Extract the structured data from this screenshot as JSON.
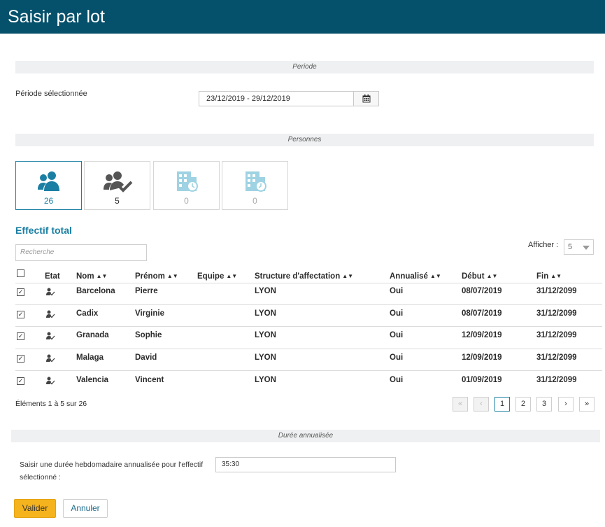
{
  "header": {
    "title": "Saisir par lot"
  },
  "periode": {
    "section_label": "Periode",
    "field_label": "Période sélectionnée",
    "value": "23/12/2019 - 29/12/2019",
    "calendar_icon": "calendar-icon"
  },
  "personnes": {
    "section_label": "Personnes",
    "tiles": [
      {
        "icon": "people-icon",
        "count": "26"
      },
      {
        "icon": "people-check-icon",
        "count": "5"
      },
      {
        "icon": "building-clock-icon",
        "count": "0"
      },
      {
        "icon": "building-history-icon",
        "count": "0"
      }
    ]
  },
  "effectif": {
    "title": "Effectif total",
    "search_placeholder": "Recherche",
    "afficher_label": "Afficher :",
    "afficher_value": "5",
    "columns": [
      "Etat",
      "Nom",
      "Prénom",
      "Equipe",
      "Structure d'affectation",
      "Annualisé",
      "Début",
      "Fin"
    ],
    "rows": [
      {
        "nom": "Barcelona",
        "prenom": "Pierre",
        "equipe": "",
        "structure": "LYON",
        "annualise": "Oui",
        "debut": "08/07/2019",
        "fin": "31/12/2099"
      },
      {
        "nom": "Cadix",
        "prenom": "Virginie",
        "equipe": "",
        "structure": "LYON",
        "annualise": "Oui",
        "debut": "08/07/2019",
        "fin": "31/12/2099"
      },
      {
        "nom": "Granada",
        "prenom": "Sophie",
        "equipe": "",
        "structure": "LYON",
        "annualise": "Oui",
        "debut": "12/09/2019",
        "fin": "31/12/2099"
      },
      {
        "nom": "Malaga",
        "prenom": "David",
        "equipe": "",
        "structure": "LYON",
        "annualise": "Oui",
        "debut": "12/09/2019",
        "fin": "31/12/2099"
      },
      {
        "nom": "Valencia",
        "prenom": "Vincent",
        "equipe": "",
        "structure": "LYON",
        "annualise": "Oui",
        "debut": "01/09/2019",
        "fin": "31/12/2099"
      }
    ],
    "pager_info": "Éléments 1 à 5 sur 26",
    "pager": {
      "first": "«",
      "prev": "‹",
      "pages": [
        "1",
        "2",
        "3"
      ],
      "next": "›",
      "last": "»"
    }
  },
  "duree": {
    "section_label": "Durée annualisée",
    "field_label": "Saisir une durée hebdomadaire annualisée pour l'effectif sélectionné :",
    "value": "35:30"
  },
  "actions": {
    "valider": "Valider",
    "annuler": "Annuler"
  },
  "colors": {
    "header": "#05506a",
    "accent": "#1b7fa3",
    "primary_button": "#f5b31d"
  }
}
